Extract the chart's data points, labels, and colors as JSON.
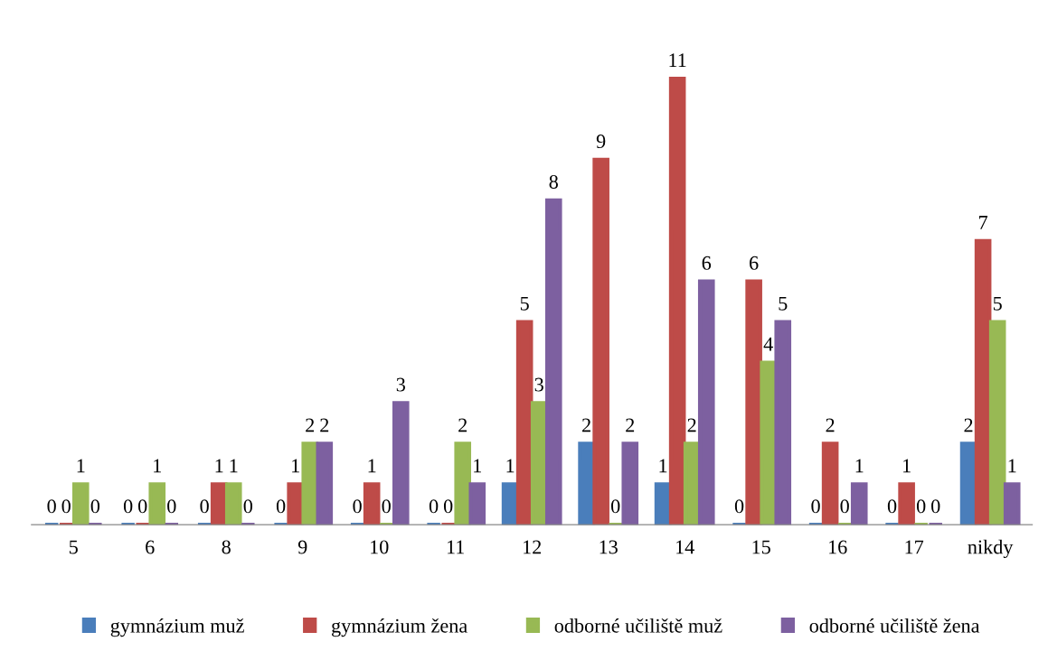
{
  "chart_data": {
    "type": "bar",
    "categories": [
      "5",
      "6",
      "8",
      "9",
      "10",
      "11",
      "12",
      "13",
      "14",
      "15",
      "16",
      "17",
      "nikdy"
    ],
    "series": [
      {
        "name": "gymnázium muž",
        "color": "#4a7ebb",
        "values": [
          0,
          0,
          0,
          0,
          0,
          0,
          1,
          2,
          1,
          0,
          0,
          0,
          2
        ]
      },
      {
        "name": "gymnázium žena",
        "color": "#be4b48",
        "values": [
          0,
          0,
          1,
          1,
          1,
          0,
          5,
          9,
          11,
          6,
          2,
          1,
          7
        ]
      },
      {
        "name": "odborné učiliště muž",
        "color": "#98b954",
        "values": [
          1,
          1,
          1,
          2,
          0,
          2,
          3,
          0,
          2,
          4,
          0,
          0,
          5
        ]
      },
      {
        "name": "odborné učiliště žena",
        "color": "#7d60a0",
        "values": [
          0,
          0,
          0,
          2,
          3,
          1,
          8,
          2,
          6,
          5,
          1,
          0,
          1
        ]
      }
    ],
    "data_labels": true,
    "legend": "bottom",
    "grid": false,
    "tick_labels": "x"
  }
}
